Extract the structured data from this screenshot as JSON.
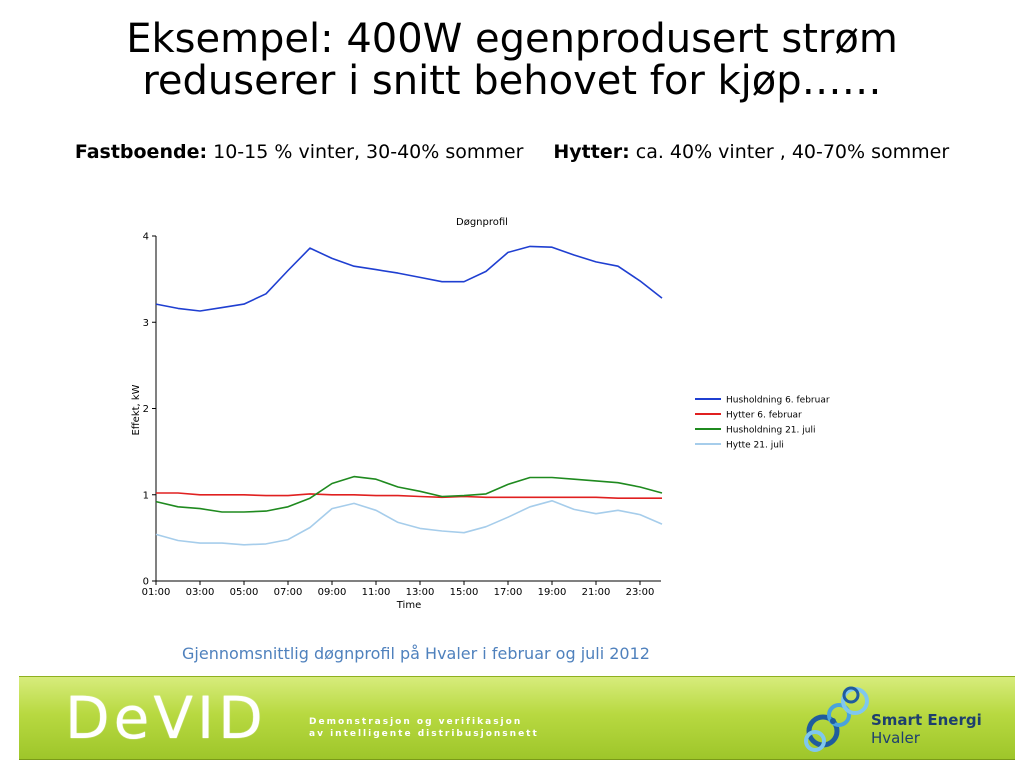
{
  "slide": {
    "title_line1": "Eksempel: 400W egenprodusert strøm",
    "title_line2": "reduserer i snitt behovet for kjøp……",
    "fast_label": "Fastboende:",
    "fast_text": " 10-15 % vinter, 30-40% sommer",
    "hytter_label": "Hytter:",
    "hytter_text": " ca. 40% vinter , 40-70% sommer",
    "caption": "Gjennomsnittlig døgnprofil på Hvaler i februar og juli 2012"
  },
  "chart_data": {
    "type": "line",
    "title": "Døgnprofil",
    "xlabel": "Time",
    "ylabel": "Effekt, kW",
    "ylim": [
      0,
      4
    ],
    "yticks": [
      "0",
      "1",
      "2",
      "3",
      "4"
    ],
    "x": [
      "01:00",
      "02:00",
      "03:00",
      "04:00",
      "05:00",
      "06:00",
      "07:00",
      "08:00",
      "09:00",
      "10:00",
      "11:00",
      "12:00",
      "13:00",
      "14:00",
      "15:00",
      "16:00",
      "17:00",
      "18:00",
      "19:00",
      "20:00",
      "21:00",
      "22:00",
      "23:00",
      "24:00"
    ],
    "xtick_labels": [
      "01:00",
      "03:00",
      "05:00",
      "07:00",
      "09:00",
      "11:00",
      "13:00",
      "15:00",
      "17:00",
      "19:00",
      "21:00",
      "23:00"
    ],
    "grid": false,
    "legend_position": "right",
    "series": [
      {
        "name": "Husholdning 6. februar",
        "color": "#1f3fd1",
        "values": [
          3.21,
          3.16,
          3.13,
          3.17,
          3.21,
          3.33,
          3.6,
          3.86,
          3.74,
          3.65,
          3.61,
          3.57,
          3.52,
          3.47,
          3.47,
          3.59,
          3.81,
          3.88,
          3.87,
          3.78,
          3.7,
          3.65,
          3.48,
          3.28
        ]
      },
      {
        "name": "Hytter 6. februar",
        "color": "#e02020",
        "values": [
          1.02,
          1.02,
          1.0,
          1.0,
          1.0,
          0.99,
          0.99,
          1.01,
          1.0,
          1.0,
          0.99,
          0.99,
          0.98,
          0.97,
          0.98,
          0.97,
          0.97,
          0.97,
          0.97,
          0.97,
          0.97,
          0.96,
          0.96,
          0.96
        ]
      },
      {
        "name": "Husholdning 21. juli",
        "color": "#1f8a1f",
        "values": [
          0.92,
          0.86,
          0.84,
          0.8,
          0.8,
          0.81,
          0.86,
          0.96,
          1.13,
          1.21,
          1.18,
          1.09,
          1.04,
          0.98,
          0.99,
          1.01,
          1.12,
          1.2,
          1.2,
          1.18,
          1.16,
          1.14,
          1.09,
          1.02
        ]
      },
      {
        "name": "Hytte 21. juli",
        "color": "#a6cdeb",
        "values": [
          0.54,
          0.47,
          0.44,
          0.44,
          0.42,
          0.43,
          0.48,
          0.62,
          0.84,
          0.9,
          0.82,
          0.68,
          0.61,
          0.58,
          0.56,
          0.63,
          0.74,
          0.86,
          0.93,
          0.83,
          0.78,
          0.82,
          0.77,
          0.66
        ]
      }
    ]
  },
  "footer": {
    "devid_logo": "DeVID",
    "devid_tag_line1": "Demonstrasjon og verifikasjon",
    "devid_tag_line2": "av intelligente distribusjonsnett",
    "brand_line1": "Smart Energi",
    "brand_line2": "Hvaler"
  }
}
